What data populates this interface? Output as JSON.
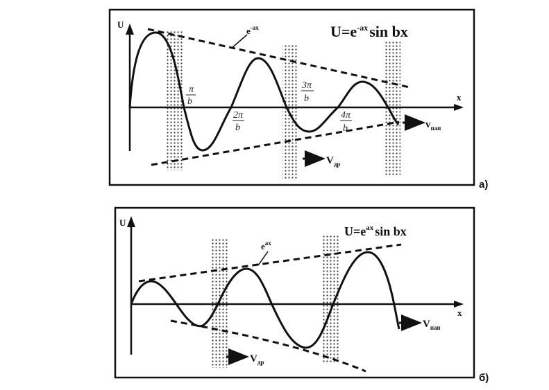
{
  "panel_a": {
    "y_axis_label": "U",
    "x_axis_label": "x",
    "formula": {
      "main": "U=e",
      "exp": "-ax",
      "tail": "sin bx"
    },
    "envelope_label": {
      "base": "e",
      "exp": "-ax"
    },
    "ticks": [
      {
        "num": "π",
        "den": "b"
      },
      {
        "num": "2π",
        "den": "b"
      },
      {
        "num": "3π",
        "den": "b"
      },
      {
        "num": "4π",
        "den": "b"
      }
    ],
    "v_phase": {
      "base": "v",
      "sub": "пап"
    },
    "v_group": {
      "base": "V",
      "sub": "др"
    },
    "panel_label": "а)"
  },
  "panel_b": {
    "y_axis_label": "U",
    "x_axis_label": "x",
    "formula": {
      "main": "U=e",
      "exp": "ax",
      "tail": "sin bx"
    },
    "envelope_label": {
      "base": "e",
      "exp": "ax"
    },
    "v_phase": {
      "base": "V",
      "sub": "пап"
    },
    "v_group": {
      "base": "V",
      "sub": "др"
    },
    "panel_label": "б)"
  }
}
